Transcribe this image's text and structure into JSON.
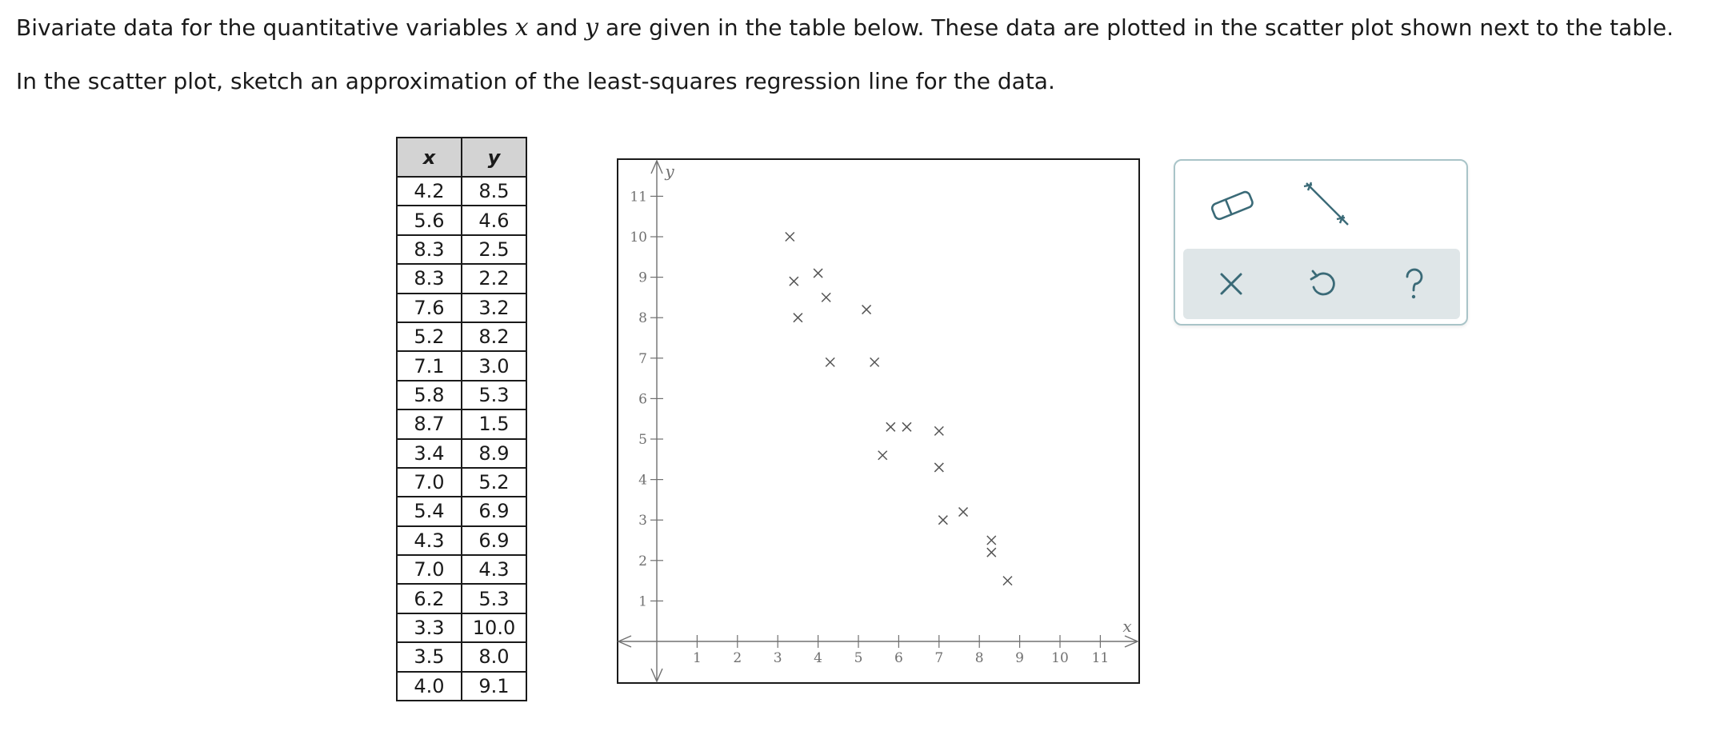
{
  "question": {
    "paragraph1": {
      "before_x": "Bivariate data for the quantitative variables ",
      "var_x": "x",
      "between": " and ",
      "var_y": "y",
      "after_y": " are given in the table below. These data are plotted in the scatter plot shown next to the table."
    },
    "paragraph2": "In the scatter plot, sketch an approximation of the least-squares regression line for the data."
  },
  "table": {
    "headers": [
      "x",
      "y"
    ],
    "rows": [
      [
        "4.2",
        "8.5"
      ],
      [
        "5.6",
        "4.6"
      ],
      [
        "8.3",
        "2.5"
      ],
      [
        "8.3",
        "2.2"
      ],
      [
        "7.6",
        "3.2"
      ],
      [
        "5.2",
        "8.2"
      ],
      [
        "7.1",
        "3.0"
      ],
      [
        "5.8",
        "5.3"
      ],
      [
        "8.7",
        "1.5"
      ],
      [
        "3.4",
        "8.9"
      ],
      [
        "7.0",
        "5.2"
      ],
      [
        "5.4",
        "6.9"
      ],
      [
        "4.3",
        "6.9"
      ],
      [
        "7.0",
        "4.3"
      ],
      [
        "6.2",
        "5.3"
      ],
      [
        "3.3",
        "10.0"
      ],
      [
        "3.5",
        "8.0"
      ],
      [
        "4.0",
        "9.1"
      ]
    ]
  },
  "chart_data": {
    "type": "scatter",
    "x": [
      4.2,
      5.6,
      8.3,
      8.3,
      7.6,
      5.2,
      7.1,
      5.8,
      8.7,
      3.4,
      7.0,
      5.4,
      4.3,
      7.0,
      6.2,
      3.3,
      3.5,
      4.0
    ],
    "y": [
      8.5,
      4.6,
      2.5,
      2.2,
      3.2,
      8.2,
      3.0,
      5.3,
      1.5,
      8.9,
      5.2,
      6.9,
      6.9,
      4.3,
      5.3,
      10.0,
      8.0,
      9.1
    ],
    "marker": "×",
    "xlabel": "x",
    "ylabel": "y",
    "xticks": [
      1,
      2,
      3,
      4,
      5,
      6,
      7,
      8,
      9,
      10,
      11
    ],
    "yticks": [
      1,
      2,
      3,
      4,
      5,
      6,
      7,
      8,
      9,
      10,
      11
    ],
    "xlim": [
      0,
      11.7
    ],
    "ylim": [
      0,
      11.5
    ],
    "grid": false,
    "colors": {
      "axis": "#707070",
      "marker": "#555555"
    }
  },
  "tools": {
    "eraser": "eraser-icon",
    "line": "line-segment-icon",
    "clear": "close-icon",
    "undo": "undo-icon",
    "help": "help-icon",
    "colors": {
      "accent": "#3a6a77",
      "panel_border": "#a9c4c8",
      "action_bar": "#dfe6e8"
    }
  }
}
